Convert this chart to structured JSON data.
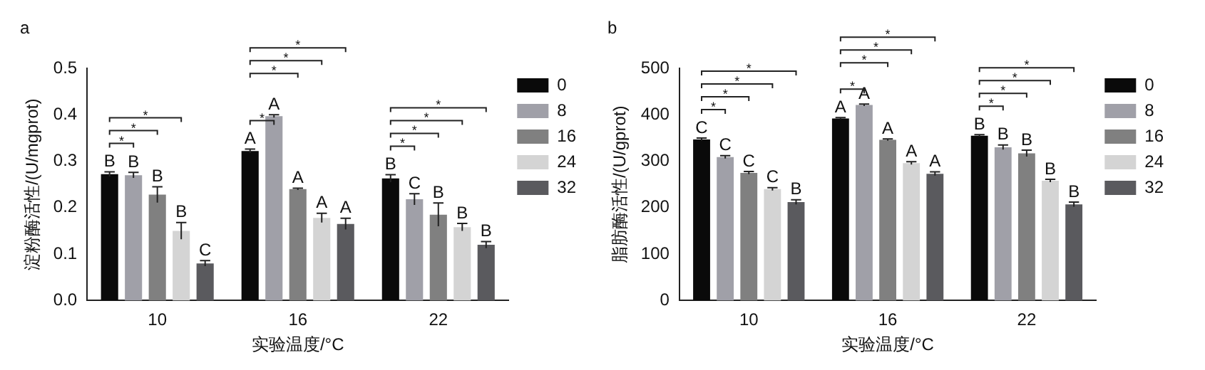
{
  "chart_data": [
    {
      "type": "bar",
      "title": "a",
      "xlabel": "实验温度/°C",
      "ylabel": "淀粉酶活性/(U/mgprot)",
      "categories": [
        "10",
        "16",
        "22"
      ],
      "ylim": [
        0,
        0.5
      ],
      "yticks": [
        {
          "value": 0,
          "label": "0.0"
        },
        0.1,
        0.2,
        0.3,
        0.4,
        0.5
      ],
      "grid": false,
      "legend": "right",
      "series": [
        {
          "name": "0",
          "color": "#0a0a0a",
          "values": [
            0.272,
            0.322,
            0.263
          ],
          "errors": [
            0.005,
            0.004,
            0.008
          ],
          "value_labels": [
            "B",
            "A",
            "B"
          ]
        },
        {
          "name": "8",
          "color": "#a0a0a8",
          "values": [
            0.27,
            0.397,
            0.218
          ],
          "errors": [
            0.006,
            0.003,
            0.012
          ],
          "value_labels": [
            "B",
            "A",
            "C"
          ]
        },
        {
          "name": "16",
          "color": "#808080",
          "values": [
            0.228,
            0.24,
            0.185
          ],
          "errors": [
            0.017,
            0.002,
            0.025
          ],
          "value_labels": [
            "B",
            "A",
            "B"
          ]
        },
        {
          "name": "24",
          "color": "#d4d4d4",
          "values": [
            0.15,
            0.178,
            0.158
          ],
          "errors": [
            0.018,
            0.01,
            0.008
          ],
          "value_labels": [
            "B",
            "A",
            "B"
          ]
        },
        {
          "name": "32",
          "color": "#5a5a5e",
          "values": [
            0.08,
            0.165,
            0.12
          ],
          "errors": [
            0.006,
            0.012,
            0.007
          ],
          "value_labels": [
            "C",
            "A",
            "B"
          ]
        }
      ],
      "annotations": [
        "*",
        "*",
        "*",
        "*",
        "*",
        "*",
        "*",
        "*",
        "*",
        "*",
        "*"
      ]
    },
    {
      "type": "bar",
      "title": "b",
      "xlabel": "实验温度/°C",
      "ylabel": "脂肪酶活性/(U/gprot)",
      "categories": [
        "10",
        "16",
        "22"
      ],
      "ylim": [
        0,
        500
      ],
      "yticks": [
        0,
        100,
        200,
        300,
        400,
        500
      ],
      "grid": false,
      "legend": "right",
      "series": [
        {
          "name": "0",
          "color": "#0a0a0a",
          "values": [
            347,
            392,
            355
          ],
          "errors": [
            3,
            2,
            2
          ],
          "value_labels": [
            "C",
            "A",
            "B"
          ]
        },
        {
          "name": "8",
          "color": "#a0a0a8",
          "values": [
            309,
            421,
            330
          ],
          "errors": [
            3,
            2,
            5
          ],
          "value_labels": [
            "C",
            "A",
            "B"
          ]
        },
        {
          "name": "16",
          "color": "#808080",
          "values": [
            275,
            346,
            317
          ],
          "errors": [
            3,
            2,
            7
          ],
          "value_labels": [
            "C",
            "A",
            "B"
          ]
        },
        {
          "name": "24",
          "color": "#d4d4d4",
          "values": [
            240,
            296,
            258
          ],
          "errors": [
            3,
            3,
            3
          ],
          "value_labels": [
            "C",
            "A",
            "B"
          ]
        },
        {
          "name": "32",
          "color": "#5a5a5e",
          "values": [
            212,
            273,
            207
          ],
          "errors": [
            5,
            4,
            5
          ],
          "value_labels": [
            "B",
            "A",
            "B"
          ]
        }
      ],
      "annotations": [
        "*",
        "*",
        "*",
        "*",
        "*",
        "*",
        "*",
        "*",
        "*",
        "*",
        "*",
        "*"
      ]
    }
  ]
}
